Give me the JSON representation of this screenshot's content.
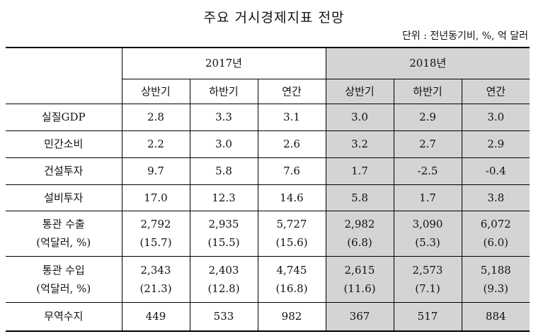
{
  "title": "주요 거시경제지표 전망",
  "unit": "단위 : 전년동기비, %, 억 달러",
  "table": {
    "groups": [
      "2017년",
      "2018년"
    ],
    "periods": [
      "상반기",
      "하반기",
      "연간",
      "상반기",
      "하반기",
      "연간"
    ],
    "rows": [
      {
        "label": [
          "실질GDP"
        ],
        "cells": [
          [
            "2.8"
          ],
          [
            "3.3"
          ],
          [
            "3.1"
          ],
          [
            "3.0"
          ],
          [
            "2.9"
          ],
          [
            "3.0"
          ]
        ]
      },
      {
        "label": [
          "민간소비"
        ],
        "cells": [
          [
            "2.2"
          ],
          [
            "3.0"
          ],
          [
            "2.6"
          ],
          [
            "3.2"
          ],
          [
            "2.7"
          ],
          [
            "2.9"
          ]
        ]
      },
      {
        "label": [
          "건설투자"
        ],
        "cells": [
          [
            "9.7"
          ],
          [
            "5.8"
          ],
          [
            "7.6"
          ],
          [
            "1.7"
          ],
          [
            "-2.5"
          ],
          [
            "-0.4"
          ]
        ]
      },
      {
        "label": [
          "설비투자"
        ],
        "cells": [
          [
            "17.0"
          ],
          [
            "12.3"
          ],
          [
            "14.6"
          ],
          [
            "5.8"
          ],
          [
            "1.7"
          ],
          [
            "3.8"
          ]
        ]
      },
      {
        "label": [
          "통관 수출",
          "(억달러, %)"
        ],
        "cells": [
          [
            "2,792",
            "(15.7)"
          ],
          [
            "2,935",
            "(15.5)"
          ],
          [
            "5,727",
            "(15.6)"
          ],
          [
            "2,982",
            "(6.8)"
          ],
          [
            "3,090",
            "(5.3)"
          ],
          [
            "6,072",
            "(6.0)"
          ]
        ]
      },
      {
        "label": [
          "통관 수입",
          "(억달러, %)"
        ],
        "cells": [
          [
            "2,343",
            "(21.3)"
          ],
          [
            "2,403",
            "(12.8)"
          ],
          [
            "4,745",
            "(16.8)"
          ],
          [
            "2,615",
            "(11.6)"
          ],
          [
            "2,573",
            "(7.1)"
          ],
          [
            "5,188",
            "(9.3)"
          ]
        ]
      },
      {
        "label": [
          "무역수지"
        ],
        "cells": [
          [
            "449"
          ],
          [
            "533"
          ],
          [
            "982"
          ],
          [
            "367"
          ],
          [
            "517"
          ],
          [
            "884"
          ]
        ]
      }
    ]
  }
}
